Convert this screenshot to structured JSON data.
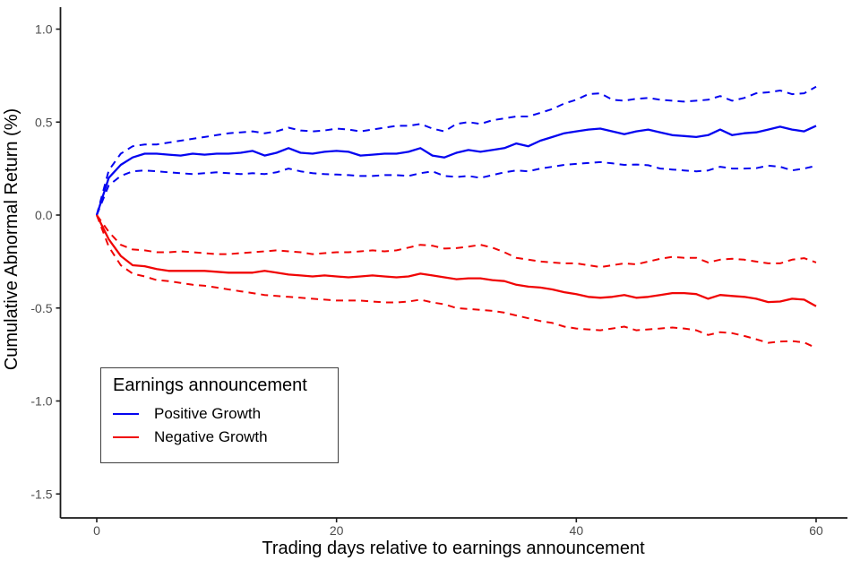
{
  "style": {
    "background": "#ffffff",
    "axis_line_color": "#1a1a1a",
    "tick_label_color": "#4d4d4d",
    "title_color": "#000000",
    "positive_color": "#0505f0",
    "negative_color": "#f00505"
  },
  "chart_data": {
    "type": "line",
    "title": "",
    "xlabel": "Trading days relative to earnings announcement",
    "ylabel": "Cumulative Abnormal Return (%)",
    "xlim": [
      -3.0,
      62.6
    ],
    "ylim": [
      -1.63,
      1.12
    ],
    "grid": false,
    "x_ticks": [
      0,
      20,
      40,
      60
    ],
    "x_tick_labels": [
      "0",
      "20",
      "40",
      "60"
    ],
    "y_ticks": [
      1.0,
      0.5,
      0.0,
      -0.5,
      -1.0,
      -1.5
    ],
    "y_tick_labels": [
      "1.0",
      "0.5",
      "0.0",
      "-0.5",
      "-1.0",
      "-1.5"
    ],
    "legend": {
      "title": "Earnings announcement",
      "position": "inside-bottom-left",
      "items": [
        {
          "label": "Positive Growth",
          "color": "#0505f0",
          "line": "solid"
        },
        {
          "label": "Negative Growth",
          "color": "#f00505",
          "line": "solid"
        }
      ]
    },
    "x": [
      0,
      1,
      2,
      3,
      4,
      5,
      6,
      7,
      8,
      9,
      10,
      11,
      12,
      13,
      14,
      15,
      16,
      17,
      18,
      19,
      20,
      21,
      22,
      23,
      24,
      25,
      26,
      27,
      28,
      29,
      30,
      31,
      32,
      33,
      34,
      35,
      36,
      37,
      38,
      39,
      40,
      41,
      42,
      43,
      44,
      45,
      46,
      47,
      48,
      49,
      50,
      51,
      52,
      53,
      54,
      55,
      56,
      57,
      58,
      59,
      60
    ],
    "series": [
      {
        "name": "Positive Growth upper 95% CI",
        "group": "positive",
        "style": "dashed",
        "color": "#0505f0",
        "values": [
          0,
          0.24,
          0.33,
          0.37,
          0.38,
          0.38,
          0.39,
          0.4,
          0.41,
          0.42,
          0.43,
          0.44,
          0.445,
          0.45,
          0.44,
          0.45,
          0.47,
          0.455,
          0.45,
          0.455,
          0.465,
          0.46,
          0.45,
          0.46,
          0.47,
          0.48,
          0.48,
          0.49,
          0.465,
          0.45,
          0.49,
          0.5,
          0.49,
          0.51,
          0.52,
          0.53,
          0.53,
          0.55,
          0.57,
          0.6,
          0.62,
          0.65,
          0.655,
          0.62,
          0.615,
          0.625,
          0.63,
          0.62,
          0.615,
          0.61,
          0.615,
          0.62,
          0.64,
          0.615,
          0.63,
          0.655,
          0.66,
          0.67,
          0.65,
          0.655,
          0.69
        ]
      },
      {
        "name": "Positive Growth lower 95% CI",
        "group": "positive",
        "style": "dashed",
        "color": "#0505f0",
        "values": [
          0,
          0.16,
          0.21,
          0.235,
          0.24,
          0.235,
          0.23,
          0.225,
          0.22,
          0.225,
          0.23,
          0.225,
          0.22,
          0.225,
          0.22,
          0.23,
          0.25,
          0.235,
          0.225,
          0.22,
          0.218,
          0.215,
          0.21,
          0.21,
          0.215,
          0.215,
          0.21,
          0.225,
          0.235,
          0.21,
          0.205,
          0.21,
          0.2,
          0.215,
          0.23,
          0.24,
          0.235,
          0.25,
          0.26,
          0.27,
          0.275,
          0.28,
          0.285,
          0.278,
          0.27,
          0.272,
          0.268,
          0.25,
          0.245,
          0.24,
          0.235,
          0.24,
          0.26,
          0.25,
          0.25,
          0.252,
          0.266,
          0.26,
          0.24,
          0.25,
          0.265
        ]
      },
      {
        "name": "Positive Growth mean CAR",
        "group": "positive",
        "style": "solid",
        "color": "#0505f0",
        "values": [
          0,
          0.2,
          0.27,
          0.31,
          0.33,
          0.33,
          0.325,
          0.32,
          0.33,
          0.325,
          0.33,
          0.33,
          0.335,
          0.345,
          0.32,
          0.335,
          0.36,
          0.335,
          0.33,
          0.34,
          0.345,
          0.34,
          0.32,
          0.325,
          0.33,
          0.33,
          0.34,
          0.36,
          0.32,
          0.31,
          0.335,
          0.35,
          0.34,
          0.35,
          0.36,
          0.385,
          0.37,
          0.4,
          0.42,
          0.44,
          0.45,
          0.46,
          0.465,
          0.45,
          0.435,
          0.45,
          0.46,
          0.445,
          0.43,
          0.425,
          0.42,
          0.43,
          0.46,
          0.43,
          0.44,
          0.445,
          0.46,
          0.475,
          0.46,
          0.45,
          0.48
        ]
      },
      {
        "name": "Negative Growth upper 95% CI",
        "group": "negative",
        "style": "dashed",
        "color": "#f00505",
        "values": [
          0,
          -0.09,
          -0.16,
          -0.185,
          -0.19,
          -0.2,
          -0.2,
          -0.195,
          -0.2,
          -0.205,
          -0.21,
          -0.21,
          -0.205,
          -0.2,
          -0.195,
          -0.19,
          -0.195,
          -0.2,
          -0.21,
          -0.205,
          -0.2,
          -0.2,
          -0.195,
          -0.19,
          -0.195,
          -0.19,
          -0.175,
          -0.16,
          -0.165,
          -0.18,
          -0.178,
          -0.17,
          -0.16,
          -0.175,
          -0.2,
          -0.23,
          -0.24,
          -0.25,
          -0.255,
          -0.26,
          -0.26,
          -0.27,
          -0.28,
          -0.27,
          -0.26,
          -0.265,
          -0.25,
          -0.235,
          -0.225,
          -0.23,
          -0.23,
          -0.255,
          -0.24,
          -0.235,
          -0.24,
          -0.25,
          -0.26,
          -0.26,
          -0.24,
          -0.232,
          -0.255
        ]
      },
      {
        "name": "Negative Growth lower 95% CI",
        "group": "negative",
        "style": "dashed",
        "color": "#f00505",
        "values": [
          0,
          -0.17,
          -0.27,
          -0.315,
          -0.33,
          -0.35,
          -0.355,
          -0.365,
          -0.375,
          -0.38,
          -0.39,
          -0.4,
          -0.41,
          -0.42,
          -0.43,
          -0.435,
          -0.44,
          -0.445,
          -0.45,
          -0.455,
          -0.46,
          -0.46,
          -0.46,
          -0.465,
          -0.47,
          -0.47,
          -0.465,
          -0.455,
          -0.47,
          -0.48,
          -0.5,
          -0.505,
          -0.51,
          -0.515,
          -0.525,
          -0.54,
          -0.555,
          -0.57,
          -0.58,
          -0.6,
          -0.61,
          -0.615,
          -0.62,
          -0.61,
          -0.6,
          -0.62,
          -0.615,
          -0.61,
          -0.605,
          -0.61,
          -0.62,
          -0.645,
          -0.63,
          -0.635,
          -0.65,
          -0.668,
          -0.687,
          -0.68,
          -0.678,
          -0.685,
          -0.715
        ]
      },
      {
        "name": "Negative Growth mean CAR",
        "group": "negative",
        "style": "solid",
        "color": "#f00505",
        "values": [
          0,
          -0.13,
          -0.22,
          -0.27,
          -0.275,
          -0.29,
          -0.3,
          -0.3,
          -0.3,
          -0.3,
          -0.305,
          -0.31,
          -0.31,
          -0.31,
          -0.3,
          -0.31,
          -0.32,
          -0.325,
          -0.33,
          -0.325,
          -0.33,
          -0.335,
          -0.33,
          -0.325,
          -0.33,
          -0.335,
          -0.33,
          -0.315,
          -0.325,
          -0.335,
          -0.345,
          -0.34,
          -0.34,
          -0.35,
          -0.355,
          -0.375,
          -0.385,
          -0.39,
          -0.4,
          -0.415,
          -0.425,
          -0.44,
          -0.445,
          -0.44,
          -0.43,
          -0.445,
          -0.44,
          -0.43,
          -0.42,
          -0.42,
          -0.425,
          -0.45,
          -0.43,
          -0.435,
          -0.44,
          -0.45,
          -0.468,
          -0.465,
          -0.45,
          -0.455,
          -0.49
        ]
      }
    ]
  }
}
